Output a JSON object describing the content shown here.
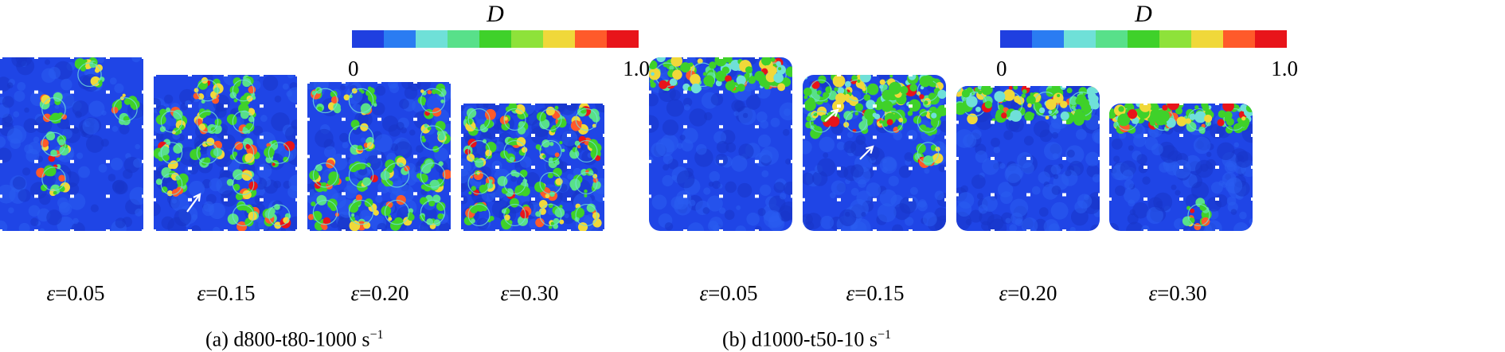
{
  "colorbar": {
    "symbol": "D",
    "min_label": "0",
    "max_label": "1.0",
    "colors": [
      "#1f3fe0",
      "#2a7cf2",
      "#6fe0d8",
      "#58e08a",
      "#3fd12a",
      "#8ee23a",
      "#f0d83a",
      "#ff5a2a",
      "#e8141a"
    ]
  },
  "panels": [
    {
      "id": "a",
      "caption": "(a) d800-t80-1000 s",
      "caption_sup": "−1",
      "snapshots": [
        {
          "strain_symbol": "ε",
          "strain_value": "=0.05"
        },
        {
          "strain_symbol": "ε",
          "strain_value": "=0.15"
        },
        {
          "strain_symbol": "ε",
          "strain_value": "=0.20"
        },
        {
          "strain_symbol": "ε",
          "strain_value": "=0.30"
        }
      ]
    },
    {
      "id": "b",
      "caption": "(b) d1000-t50-10 s",
      "caption_sup": "−1",
      "snapshots": [
        {
          "strain_symbol": "ε",
          "strain_value": "=0.05"
        },
        {
          "strain_symbol": "ε",
          "strain_value": "=0.15"
        },
        {
          "strain_symbol": "ε",
          "strain_value": "=0.20"
        },
        {
          "strain_symbol": "ε",
          "strain_value": "=0.30"
        }
      ]
    }
  ]
}
